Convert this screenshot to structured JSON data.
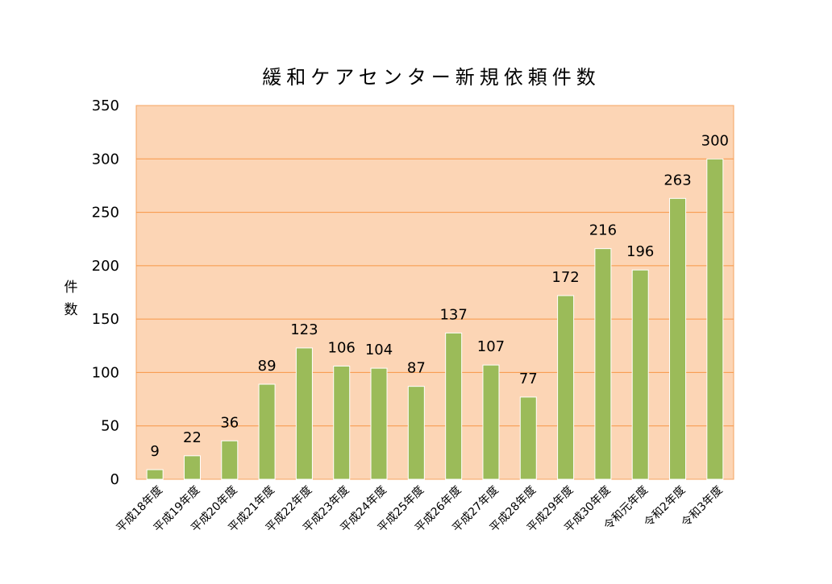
{
  "chart_data": {
    "type": "bar",
    "title": "緩和ケアセンター新規依頼件数",
    "ylabel": "件数",
    "xlabel": "",
    "ylim": [
      0,
      350
    ],
    "y_ticks": [
      0,
      50,
      100,
      150,
      200,
      250,
      300,
      350
    ],
    "grid": true,
    "categories": [
      "平成18年度",
      "平成19年度",
      "平成20年度",
      "平成21年度",
      "平成22年度",
      "平成23年度",
      "平成24年度",
      "平成25年度",
      "平成26年度",
      "平成27年度",
      "平成28年度",
      "平成29年度",
      "平成30年度",
      "令和元年度",
      "令和2年度",
      "令和3年度"
    ],
    "values": [
      9,
      22,
      36,
      89,
      123,
      106,
      104,
      87,
      137,
      107,
      77,
      172,
      216,
      196,
      263,
      300
    ]
  },
  "colors": {
    "plot_background": "#fcd5b5",
    "plot_border": "#f4a460",
    "gridline": "#f79646",
    "bar_fill": "#9bbb59",
    "bar_stroke": "#ffffff"
  }
}
